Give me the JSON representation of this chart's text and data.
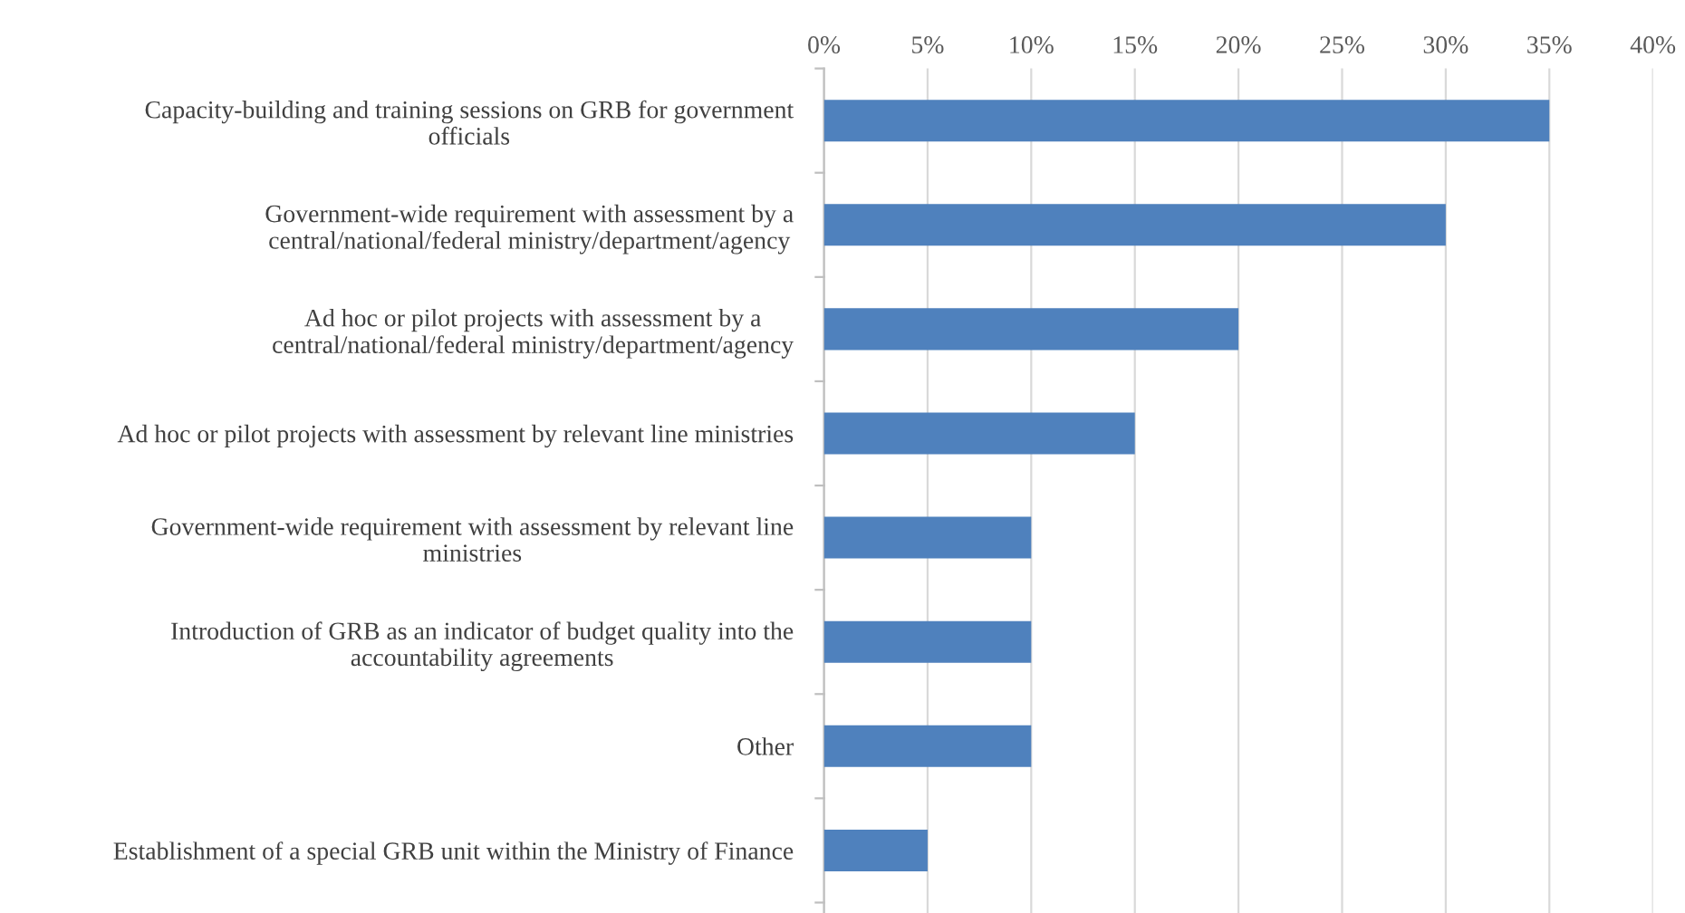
{
  "chart_data": {
    "type": "bar",
    "orientation": "horizontal",
    "categories": [
      "Capacity-building and training sessions on GRB for government\nofficials",
      "Government-wide requirement with assessment by a\ncentral/national/federal ministry/department/agency",
      "Ad hoc or pilot projects with assessment by a\ncentral/national/federal ministry/department/agency",
      "Ad hoc or pilot projects with assessment by relevant line ministries",
      "Government-wide requirement with assessment by relevant line\nministries",
      "Introduction of GRB as an indicator of budget quality into the\naccountability agreements",
      "Other",
      "Establishment of a special GRB unit within the Ministry of Finance"
    ],
    "values": [
      35,
      30,
      20,
      15,
      10,
      10,
      10,
      5
    ],
    "color": "#4f81bd",
    "xlim": [
      0,
      40
    ],
    "xticks": [
      {
        "value": 0,
        "label": "0%"
      },
      {
        "value": 5,
        "label": "5%"
      },
      {
        "value": 10,
        "label": "10%"
      },
      {
        "value": 15,
        "label": "15%"
      },
      {
        "value": 20,
        "label": "20%"
      },
      {
        "value": 25,
        "label": "25%"
      },
      {
        "value": 30,
        "label": "30%"
      },
      {
        "value": 35,
        "label": "35%"
      },
      {
        "value": 40,
        "label": "40%"
      }
    ],
    "grid": "x",
    "legend": false
  }
}
